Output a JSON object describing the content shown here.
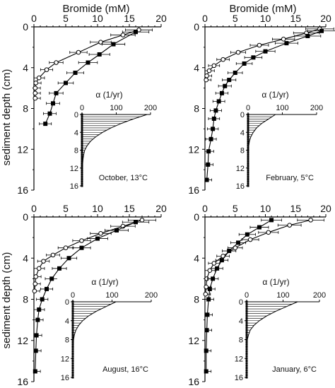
{
  "figure": {
    "y_axis_label": "sediment depth (cm)",
    "x_axis_label": "Bromide (mM)",
    "inset_axis_label": "α (1/yr)"
  },
  "chart_data": [
    {
      "type": "scatter",
      "caption": "October, 13°C",
      "xlabel": "Bromide (mM)",
      "ylabel": "sediment depth (cm)",
      "xlim": [
        0,
        20
      ],
      "ylim": [
        16,
        0
      ],
      "xticks": [
        0,
        5,
        10,
        15,
        20
      ],
      "yticks": [
        0,
        4,
        8,
        12,
        16
      ],
      "overlying_water_line_at_depth": 0,
      "overlying_water_bromide_range": [
        16.8,
        17.5
      ],
      "series": [
        {
          "marker": "open-circle",
          "points": [
            [
              16.5,
              0.3
            ],
            [
              14,
              0.8
            ],
            [
              10.5,
              1.5
            ],
            [
              7,
              2.5
            ],
            [
              3.5,
              3.5
            ],
            [
              2,
              4.2
            ],
            [
              0.8,
              5
            ],
            [
              0.3,
              5.5
            ],
            [
              0.2,
              6
            ],
            [
              0.2,
              6.5
            ],
            [
              0.2,
              7
            ]
          ]
        },
        {
          "marker": "filled-square",
          "points": [
            [
              16,
              0.5
            ],
            [
              12.5,
              1.7
            ],
            [
              10.3,
              2.7
            ],
            [
              8.5,
              3.5
            ],
            [
              6.5,
              4.5
            ],
            [
              5,
              5.5
            ],
            [
              3.5,
              6.5
            ],
            [
              3,
              7.5
            ],
            [
              2.5,
              8.5
            ],
            [
              1.8,
              9.5
            ]
          ]
        }
      ],
      "inset": {
        "xlabel": "α (1/yr)",
        "xlim": [
          0,
          200
        ],
        "ylim": [
          16,
          0
        ],
        "xticks": [
          0,
          100,
          200
        ],
        "yticks": [
          0,
          4,
          8,
          12,
          16
        ],
        "profile": [
          [
            190,
            0
          ],
          [
            150,
            1
          ],
          [
            115,
            2
          ],
          [
            85,
            3
          ],
          [
            60,
            4
          ],
          [
            40,
            5
          ],
          [
            25,
            6
          ],
          [
            15,
            7
          ],
          [
            8,
            8
          ],
          [
            5,
            9
          ],
          [
            3,
            10
          ],
          [
            1,
            12
          ],
          [
            0,
            14
          ],
          [
            0,
            16
          ]
        ]
      }
    },
    {
      "type": "scatter",
      "caption": "February, 5°C",
      "xlabel": "Bromide (mM)",
      "ylabel": "sediment depth (cm)",
      "xlim": [
        0,
        20
      ],
      "ylim": [
        16,
        0
      ],
      "xticks": [
        0,
        5,
        10,
        15,
        20
      ],
      "yticks": [
        0,
        4,
        8,
        12,
        16
      ],
      "overlying_water_line_at_depth": 0,
      "overlying_water_bromide_range": [
        16,
        19.2
      ],
      "series": [
        {
          "marker": "open-circle",
          "points": [
            [
              19,
              0.2
            ],
            [
              16.8,
              0.6
            ],
            [
              13,
              1.2
            ],
            [
              9,
              1.8
            ],
            [
              5.5,
              2.5
            ],
            [
              3,
              3.2
            ],
            [
              1.5,
              3.8
            ],
            [
              0.7,
              4.3
            ],
            [
              0.3,
              4.8
            ],
            [
              0.2,
              5.2
            ]
          ]
        },
        {
          "marker": "filled-square",
          "points": [
            [
              19.3,
              0.4
            ],
            [
              17,
              0.9
            ],
            [
              13.5,
              1.6
            ],
            [
              10,
              2.4
            ],
            [
              8,
              3
            ],
            [
              6.5,
              3.6
            ],
            [
              5,
              4.5
            ],
            [
              4,
              5.2
            ],
            [
              3.3,
              5.8
            ],
            [
              2.8,
              6.5
            ],
            [
              2.3,
              7.3
            ],
            [
              1.8,
              8.2
            ],
            [
              1.5,
              9
            ],
            [
              1.3,
              10
            ],
            [
              1,
              11
            ],
            [
              0.6,
              12.2
            ],
            [
              0.5,
              13.5
            ],
            [
              0.3,
              15
            ]
          ]
        }
      ],
      "inset": {
        "xlabel": "α (1/yr)",
        "xlim": [
          0,
          200
        ],
        "ylim": [
          16,
          0
        ],
        "xticks": [
          0,
          100,
          200
        ],
        "yticks": [
          0,
          4,
          8,
          12,
          16
        ],
        "profile": [
          [
            80,
            0
          ],
          [
            60,
            1
          ],
          [
            40,
            2
          ],
          [
            25,
            3
          ],
          [
            15,
            4
          ],
          [
            8,
            5
          ],
          [
            4,
            6
          ],
          [
            2,
            7
          ],
          [
            1,
            8
          ],
          [
            0,
            10
          ],
          [
            0,
            12
          ],
          [
            0,
            14
          ],
          [
            0,
            16
          ]
        ]
      }
    },
    {
      "type": "scatter",
      "caption": "August, 16°C",
      "xlabel": "Bromide (mM)",
      "ylabel": "sediment depth (cm)",
      "xlim": [
        0,
        20
      ],
      "ylim": [
        16,
        0
      ],
      "xticks": [
        0,
        5,
        10,
        15,
        20
      ],
      "yticks": [
        0,
        4,
        8,
        12,
        16
      ],
      "overlying_water_line_at_depth": 0,
      "overlying_water_bromide_range": [
        17,
        18.3
      ],
      "series": [
        {
          "marker": "open-circle",
          "points": [
            [
              17,
              0.3
            ],
            [
              14,
              0.9
            ],
            [
              10.5,
              1.6
            ],
            [
              7.5,
              2.3
            ],
            [
              5,
              3
            ],
            [
              3,
              3.7
            ],
            [
              1.5,
              4.3
            ],
            [
              0.8,
              5
            ],
            [
              0.3,
              5.8
            ],
            [
              0.2,
              6.5
            ],
            [
              0.1,
              7.2
            ]
          ]
        },
        {
          "marker": "filled-square",
          "points": [
            [
              16,
              0.5
            ],
            [
              13,
              1.3
            ],
            [
              10,
              2.1
            ],
            [
              7.5,
              3
            ],
            [
              5.5,
              4
            ],
            [
              4,
              5
            ],
            [
              2.8,
              6
            ],
            [
              2,
              7
            ],
            [
              1.3,
              8
            ],
            [
              0.8,
              9
            ],
            [
              0.6,
              10
            ],
            [
              0.4,
              11.5
            ],
            [
              0.3,
              13
            ],
            [
              0.2,
              15
            ]
          ]
        }
      ],
      "inset": {
        "xlabel": "α (1/yr)",
        "xlim": [
          0,
          200
        ],
        "ylim": [
          16,
          0
        ],
        "xticks": [
          0,
          100,
          200
        ],
        "yticks": [
          0,
          4,
          8,
          12,
          16
        ],
        "profile": [
          [
            110,
            0
          ],
          [
            85,
            1
          ],
          [
            60,
            2
          ],
          [
            40,
            3
          ],
          [
            25,
            4
          ],
          [
            15,
            5
          ],
          [
            8,
            6
          ],
          [
            4,
            7
          ],
          [
            2,
            8
          ],
          [
            1,
            9
          ],
          [
            0,
            11
          ],
          [
            0,
            13
          ],
          [
            0,
            16
          ]
        ]
      }
    },
    {
      "type": "scatter",
      "caption": "January, 6°C",
      "xlabel": "Bromide (mM)",
      "ylabel": "sediment depth (cm)",
      "xlim": [
        0,
        20
      ],
      "ylim": [
        16,
        0
      ],
      "xticks": [
        0,
        5,
        10,
        15,
        20
      ],
      "yticks": [
        0,
        4,
        8,
        12,
        16
      ],
      "overlying_water_line_at_depth": 0,
      "overlying_water_bromide_range": [
        10.8,
        12
      ],
      "series": [
        {
          "marker": "open-circle",
          "points": [
            [
              17.5,
              0.3
            ],
            [
              14,
              0.8
            ],
            [
              10.5,
              1.5
            ],
            [
              7.5,
              2.2
            ],
            [
              5,
              3
            ],
            [
              3,
              3.8
            ],
            [
              1.5,
              4.5
            ],
            [
              0.8,
              5.2
            ],
            [
              0.3,
              6
            ],
            [
              0.2,
              6.8
            ],
            [
              0.1,
              7.5
            ]
          ]
        },
        {
          "marker": "filled-square",
          "points": [
            [
              11,
              0.3
            ],
            [
              9,
              1
            ],
            [
              7,
              1.7
            ],
            [
              5.5,
              2.5
            ],
            [
              4,
              3.3
            ],
            [
              2.8,
              4.2
            ],
            [
              2,
              5
            ],
            [
              1.3,
              6
            ],
            [
              0.8,
              7
            ],
            [
              0.6,
              8
            ],
            [
              0.4,
              9.5
            ],
            [
              0.3,
              11
            ],
            [
              0.2,
              13
            ],
            [
              0.2,
              15
            ]
          ]
        }
      ],
      "inset": {
        "xlabel": "α (1/yr)",
        "xlim": [
          0,
          200
        ],
        "ylim": [
          16,
          0
        ],
        "xticks": [
          0,
          100,
          200
        ],
        "yticks": [
          0,
          4,
          8,
          12,
          16
        ],
        "profile": [
          [
            140,
            0
          ],
          [
            110,
            1
          ],
          [
            80,
            2
          ],
          [
            55,
            3
          ],
          [
            35,
            4
          ],
          [
            20,
            5
          ],
          [
            10,
            6
          ],
          [
            5,
            7
          ],
          [
            2,
            8
          ],
          [
            1,
            9
          ],
          [
            0,
            11
          ],
          [
            0,
            13
          ],
          [
            0,
            16
          ]
        ]
      }
    }
  ]
}
